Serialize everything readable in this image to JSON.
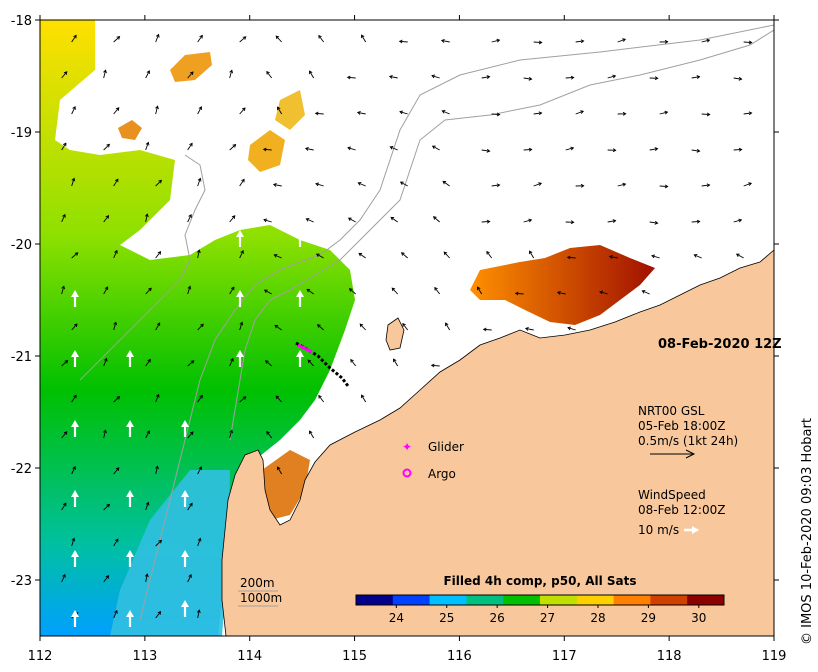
{
  "map": {
    "lon_ticks": [
      112,
      113,
      114,
      115,
      116,
      117,
      118,
      119
    ],
    "lat_ticks": [
      -18,
      -19,
      -20,
      -21,
      -22,
      -23
    ],
    "lon_range": [
      112,
      119
    ],
    "lat_range": [
      -23.5,
      -18
    ],
    "date_label": "08-Feb-2020 12Z",
    "credit": "© IMOS 10-Feb-2020 09:03 Hobart"
  },
  "colorbar": {
    "title": "Filled 4h comp, p50, All Sats",
    "ticks": [
      24,
      25,
      26,
      27,
      28,
      29,
      30
    ],
    "range": [
      23.2,
      30.5
    ],
    "colors": [
      "#00008b",
      "#0040ff",
      "#00c0ff",
      "#00c080",
      "#00c000",
      "#c0e000",
      "#ffd000",
      "#ff8000",
      "#d04000",
      "#8b0000"
    ]
  },
  "legend": {
    "glider_label": "Glider",
    "argo_label": "Argo",
    "current_lines": [
      "NRT00 GSL",
      "05-Feb 18:00Z",
      "0.5m/s (1kt 24h)"
    ],
    "wind_lines": [
      "WindSpeed",
      "08-Feb 12:00Z"
    ],
    "wind_scale_label": "10 m/s",
    "marker_color": "#ff00ff"
  },
  "bathymetry": {
    "labels": [
      "200m",
      "1000m"
    ]
  },
  "colors": {
    "land": "#f8c89c",
    "coast": "#000000",
    "contour": "#a0a0a0",
    "arrow": "#000000",
    "wind_arrow": "#ffffff"
  }
}
